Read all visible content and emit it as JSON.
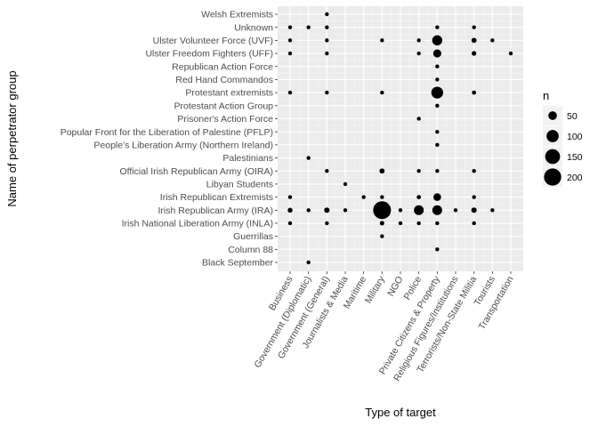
{
  "chart_data": {
    "type": "scatter",
    "title": "",
    "xlabel": "Type of target",
    "ylabel": "Name of perpetrator group",
    "grid": true,
    "legend_position": "right",
    "categories_x": [
      "Business",
      "Government (Diplomatic)",
      "Government (General)",
      "Journalists & Media",
      "Maritime",
      "Military",
      "NGO",
      "Police",
      "Private Citizens & Property",
      "Religious Figures/Institutions",
      "Terrorists/Non-State Militia",
      "Tourists",
      "Transportation"
    ],
    "categories_y": [
      "Welsh Extremists",
      "Unknown",
      "Ulster Volunteer Force (UVF)",
      "Ulster Freedom Fighters (UFF)",
      "Republican Action Force",
      "Red Hand Commandos",
      "Protestant extremists",
      "Protestant Action Group",
      "Prisoner's Action Force",
      "Popular Front for the Liberation of Palestine (PFLP)",
      "People's Liberation Army (Northern Ireland)",
      "Palestinians",
      "Official Irish Republican Army (OIRA)",
      "Libyan Students",
      "Irish Republican Extremists",
      "Irish Republican Army (IRA)",
      "Irish National Liberation Army (INLA)",
      "Guerrillas",
      "Column 88",
      "Black September"
    ],
    "size_legend": {
      "title": "n",
      "values": [
        50,
        100,
        150,
        200
      ]
    },
    "points": [
      {
        "x": "Government (General)",
        "y": "Welsh Extremists",
        "n": 1
      },
      {
        "x": "Business",
        "y": "Unknown",
        "n": 6
      },
      {
        "x": "Government (Diplomatic)",
        "y": "Unknown",
        "n": 2
      },
      {
        "x": "Government (General)",
        "y": "Unknown",
        "n": 2
      },
      {
        "x": "Private Citizens & Property",
        "y": "Unknown",
        "n": 9
      },
      {
        "x": "Terrorists/Non-State Militia",
        "y": "Unknown",
        "n": 6
      },
      {
        "x": "Business",
        "y": "Ulster Volunteer Force (UVF)",
        "n": 6
      },
      {
        "x": "Government (General)",
        "y": "Ulster Volunteer Force (UVF)",
        "n": 5
      },
      {
        "x": "Military",
        "y": "Ulster Volunteer Force (UVF)",
        "n": 2
      },
      {
        "x": "Police",
        "y": "Ulster Volunteer Force (UVF)",
        "n": 2
      },
      {
        "x": "Private Citizens & Property",
        "y": "Ulster Volunteer Force (UVF)",
        "n": 70
      },
      {
        "x": "Terrorists/Non-State Militia",
        "y": "Ulster Volunteer Force (UVF)",
        "n": 18
      },
      {
        "x": "Tourists",
        "y": "Ulster Volunteer Force (UVF)",
        "n": 2
      },
      {
        "x": "Business",
        "y": "Ulster Freedom Fighters (UFF)",
        "n": 2
      },
      {
        "x": "Government (General)",
        "y": "Ulster Freedom Fighters (UFF)",
        "n": 2
      },
      {
        "x": "Police",
        "y": "Ulster Freedom Fighters (UFF)",
        "n": 2
      },
      {
        "x": "Private Citizens & Property",
        "y": "Ulster Freedom Fighters (UFF)",
        "n": 45
      },
      {
        "x": "Terrorists/Non-State Militia",
        "y": "Ulster Freedom Fighters (UFF)",
        "n": 15
      },
      {
        "x": "Transportation",
        "y": "Ulster Freedom Fighters (UFF)",
        "n": 2
      },
      {
        "x": "Private Citizens & Property",
        "y": "Republican Action Force",
        "n": 1
      },
      {
        "x": "Private Citizens & Property",
        "y": "Red Hand Commandos",
        "n": 7
      },
      {
        "x": "Business",
        "y": "Protestant extremists",
        "n": 2
      },
      {
        "x": "Government (General)",
        "y": "Protestant extremists",
        "n": 9
      },
      {
        "x": "Military",
        "y": "Protestant extremists",
        "n": 2
      },
      {
        "x": "Private Citizens & Property",
        "y": "Protestant extremists",
        "n": 95
      },
      {
        "x": "Terrorists/Non-State Militia",
        "y": "Protestant extremists",
        "n": 12
      },
      {
        "x": "Private Citizens & Property",
        "y": "Protestant Action Group",
        "n": 7
      },
      {
        "x": "Police",
        "y": "Prisoner's Action Force",
        "n": 2
      },
      {
        "x": "Private Citizens & Property",
        "y": "Popular Front for the Liberation of Palestine (PFLP)",
        "n": 1
      },
      {
        "x": "Private Citizens & Property",
        "y": "People's Liberation Army (Northern Ireland)",
        "n": 2
      },
      {
        "x": "Government (Diplomatic)",
        "y": "Palestinians",
        "n": 2
      },
      {
        "x": "Government (General)",
        "y": "Official Irish Republican Army (OIRA)",
        "n": 4
      },
      {
        "x": "Military",
        "y": "Official Irish Republican Army (OIRA)",
        "n": 18
      },
      {
        "x": "Police",
        "y": "Official Irish Republican Army (OIRA)",
        "n": 2
      },
      {
        "x": "Private Citizens & Property",
        "y": "Official Irish Republican Army (OIRA)",
        "n": 10
      },
      {
        "x": "Terrorists/Non-State Militia",
        "y": "Official Irish Republican Army (OIRA)",
        "n": 9
      },
      {
        "x": "Journalists & Media",
        "y": "Libyan Students",
        "n": 2
      },
      {
        "x": "Business",
        "y": "Irish Republican Extremists",
        "n": 2
      },
      {
        "x": "Maritime",
        "y": "Irish Republican Extremists",
        "n": 1
      },
      {
        "x": "Military",
        "y": "Irish Republican Extremists",
        "n": 4
      },
      {
        "x": "Police",
        "y": "Irish Republican Extremists",
        "n": 12
      },
      {
        "x": "Private Citizens & Property",
        "y": "Irish Republican Extremists",
        "n": 40
      },
      {
        "x": "Terrorists/Non-State Militia",
        "y": "Irish Republican Extremists",
        "n": 2
      },
      {
        "x": "Business",
        "y": "Irish Republican Army (IRA)",
        "n": 16
      },
      {
        "x": "Government (Diplomatic)",
        "y": "Irish Republican Army (IRA)",
        "n": 2
      },
      {
        "x": "Government (General)",
        "y": "Irish Republican Army (IRA)",
        "n": 20
      },
      {
        "x": "Journalists & Media",
        "y": "Irish Republican Army (IRA)",
        "n": 10
      },
      {
        "x": "Military",
        "y": "Irish Republican Army (IRA)",
        "n": 215
      },
      {
        "x": "NGO",
        "y": "Irish Republican Army (IRA)",
        "n": 2
      },
      {
        "x": "Police",
        "y": "Irish Republican Army (IRA)",
        "n": 65
      },
      {
        "x": "Private Citizens & Property",
        "y": "Irish Republican Army (IRA)",
        "n": 65
      },
      {
        "x": "Religious Figures/Institutions",
        "y": "Irish Republican Army (IRA)",
        "n": 2
      },
      {
        "x": "Terrorists/Non-State Militia",
        "y": "Irish Republican Army (IRA)",
        "n": 20
      },
      {
        "x": "Tourists",
        "y": "Irish Republican Army (IRA)",
        "n": 2
      },
      {
        "x": "Business",
        "y": "Irish National Liberation Army (INLA)",
        "n": 2
      },
      {
        "x": "Government (General)",
        "y": "Irish National Liberation Army (INLA)",
        "n": 6
      },
      {
        "x": "Military",
        "y": "Irish National Liberation Army (INLA)",
        "n": 14
      },
      {
        "x": "NGO",
        "y": "Irish National Liberation Army (INLA)",
        "n": 2
      },
      {
        "x": "Police",
        "y": "Irish National Liberation Army (INLA)",
        "n": 6
      },
      {
        "x": "Private Citizens & Property",
        "y": "Irish National Liberation Army (INLA)",
        "n": 8
      },
      {
        "x": "Terrorists/Non-State Militia",
        "y": "Irish National Liberation Army (INLA)",
        "n": 6
      },
      {
        "x": "Military",
        "y": "Guerrillas",
        "n": 2
      },
      {
        "x": "Private Citizens & Property",
        "y": "Column 88",
        "n": 2
      },
      {
        "x": "Government (Diplomatic)",
        "y": "Black September",
        "n": 4
      }
    ]
  }
}
